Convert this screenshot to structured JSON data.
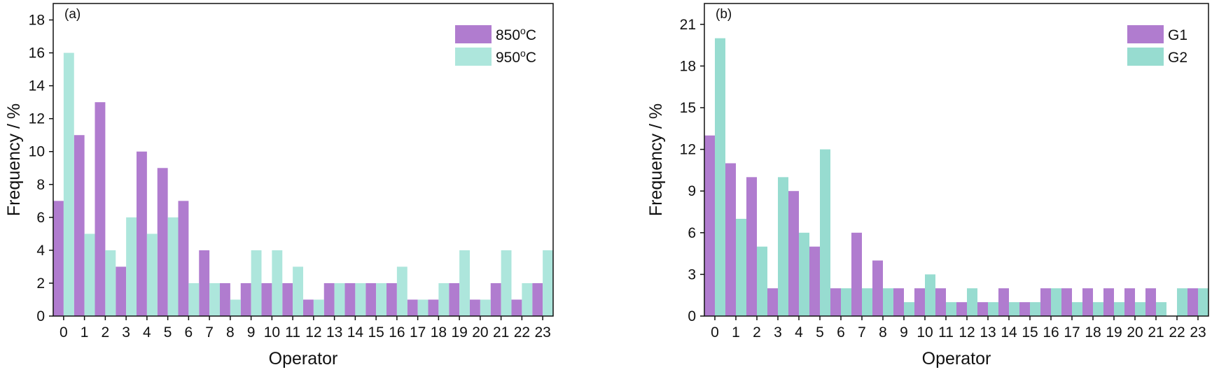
{
  "chart_data": [
    {
      "type": "bar",
      "panel_label": "(a)",
      "xlabel": "Operator",
      "ylabel": "Frequency / %",
      "ylim": [
        0,
        19
      ],
      "yticks": [
        0,
        2,
        4,
        6,
        8,
        10,
        12,
        14,
        16,
        18
      ],
      "categories": [
        "0",
        "1",
        "2",
        "3",
        "4",
        "5",
        "6",
        "7",
        "8",
        "9",
        "10",
        "11",
        "12",
        "13",
        "14",
        "15",
        "16",
        "17",
        "18",
        "19",
        "20",
        "21",
        "22",
        "23"
      ],
      "legend_position": "top-right",
      "series": [
        {
          "name": "850",
          "unit_suffix": "C",
          "superscript": "o",
          "color": "#b07ccf",
          "values": [
            7,
            11,
            13,
            3,
            10,
            9,
            7,
            4,
            2,
            2,
            2,
            2,
            1,
            2,
            2,
            2,
            2,
            1,
            1,
            2,
            1,
            2,
            1,
            2
          ]
        },
        {
          "name": "950",
          "unit_suffix": "C",
          "superscript": "o",
          "color": "#ade6dc",
          "values": [
            16,
            5,
            4,
            6,
            5,
            6,
            2,
            2,
            1,
            4,
            4,
            3,
            1,
            2,
            2,
            2,
            3,
            1,
            2,
            4,
            1,
            4,
            2,
            4
          ]
        }
      ]
    },
    {
      "type": "bar",
      "panel_label": "(b)",
      "xlabel": "Operator",
      "ylabel": "Frequency / %",
      "ylim": [
        0,
        22.5
      ],
      "yticks": [
        0,
        3,
        6,
        9,
        12,
        15,
        18,
        21
      ],
      "categories": [
        "0",
        "1",
        "2",
        "3",
        "4",
        "5",
        "6",
        "7",
        "8",
        "9",
        "10",
        "11",
        "12",
        "13",
        "14",
        "15",
        "16",
        "17",
        "18",
        "19",
        "20",
        "21",
        "22",
        "23"
      ],
      "legend_position": "top-right",
      "series": [
        {
          "name": "G1",
          "color": "#b07ccf",
          "values": [
            13,
            11,
            10,
            2,
            9,
            5,
            2,
            6,
            4,
            2,
            2,
            2,
            1,
            1,
            2,
            1,
            2,
            2,
            2,
            2,
            2,
            2,
            0,
            2
          ]
        },
        {
          "name": "G2",
          "color": "#97dcd0",
          "values": [
            20,
            7,
            5,
            10,
            6,
            12,
            2,
            2,
            2,
            1,
            3,
            1,
            2,
            1,
            1,
            1,
            2,
            1,
            1,
            1,
            1,
            1,
            2,
            2
          ]
        }
      ]
    }
  ]
}
